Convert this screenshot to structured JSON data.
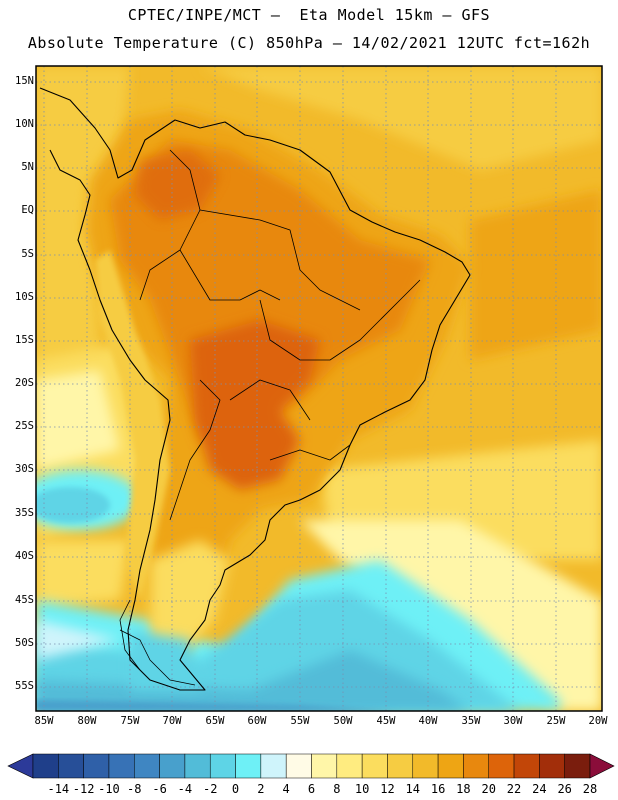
{
  "header": {
    "line1": "CPTEC/INPE/MCT –  Eta Model 15km – GFS",
    "line2": "Absolute Temperature (C) 850hPa – 14/02/2021 12UTC fct=162h"
  },
  "map": {
    "lat_labels": [
      "15N",
      "10N",
      "5N",
      "EQ",
      "5S",
      "10S",
      "15S",
      "20S",
      "25S",
      "30S",
      "35S",
      "40S",
      "45S",
      "50S",
      "55S"
    ],
    "lon_labels": [
      "85W",
      "80W",
      "75W",
      "70W",
      "65W",
      "60W",
      "55W",
      "50W",
      "45W",
      "40W",
      "35W",
      "30W",
      "25W",
      "20W"
    ],
    "regions": [
      {
        "name": "hot-interior-region",
        "value_c": "24"
      },
      {
        "name": "warm-continent-region",
        "value_c": "20"
      },
      {
        "name": "tropical-ocean-region",
        "value_c": "18"
      },
      {
        "name": "subtropical-ocean-region",
        "value_c": "14"
      },
      {
        "name": "cold-southern-ocean-region",
        "value_c": "2"
      }
    ]
  },
  "colorbar": {
    "labels": [
      "-14",
      "-12",
      "-10",
      "-8",
      "-6",
      "-4",
      "-2",
      "0",
      "2",
      "4",
      "6",
      "8",
      "10",
      "12",
      "14",
      "16",
      "18",
      "20",
      "22",
      "24",
      "26",
      "28"
    ],
    "colors": [
      "#1f3f8a",
      "#274f98",
      "#2f60a8",
      "#3772b6",
      "#3f86c2",
      "#48a0cc",
      "#52bcd8",
      "#5ed4e6",
      "#6ef0f6",
      "#cff4fb",
      "#fffbe6",
      "#fff6a8",
      "#ffec80",
      "#fbdd5e",
      "#f6cc42",
      "#f2ba2a",
      "#eea514",
      "#e8880e",
      "#dd640a",
      "#c24608",
      "#a22e0a",
      "#7a1d0d"
    ],
    "under_color": "#2c3a99",
    "over_color": "#8a0d3a"
  }
}
